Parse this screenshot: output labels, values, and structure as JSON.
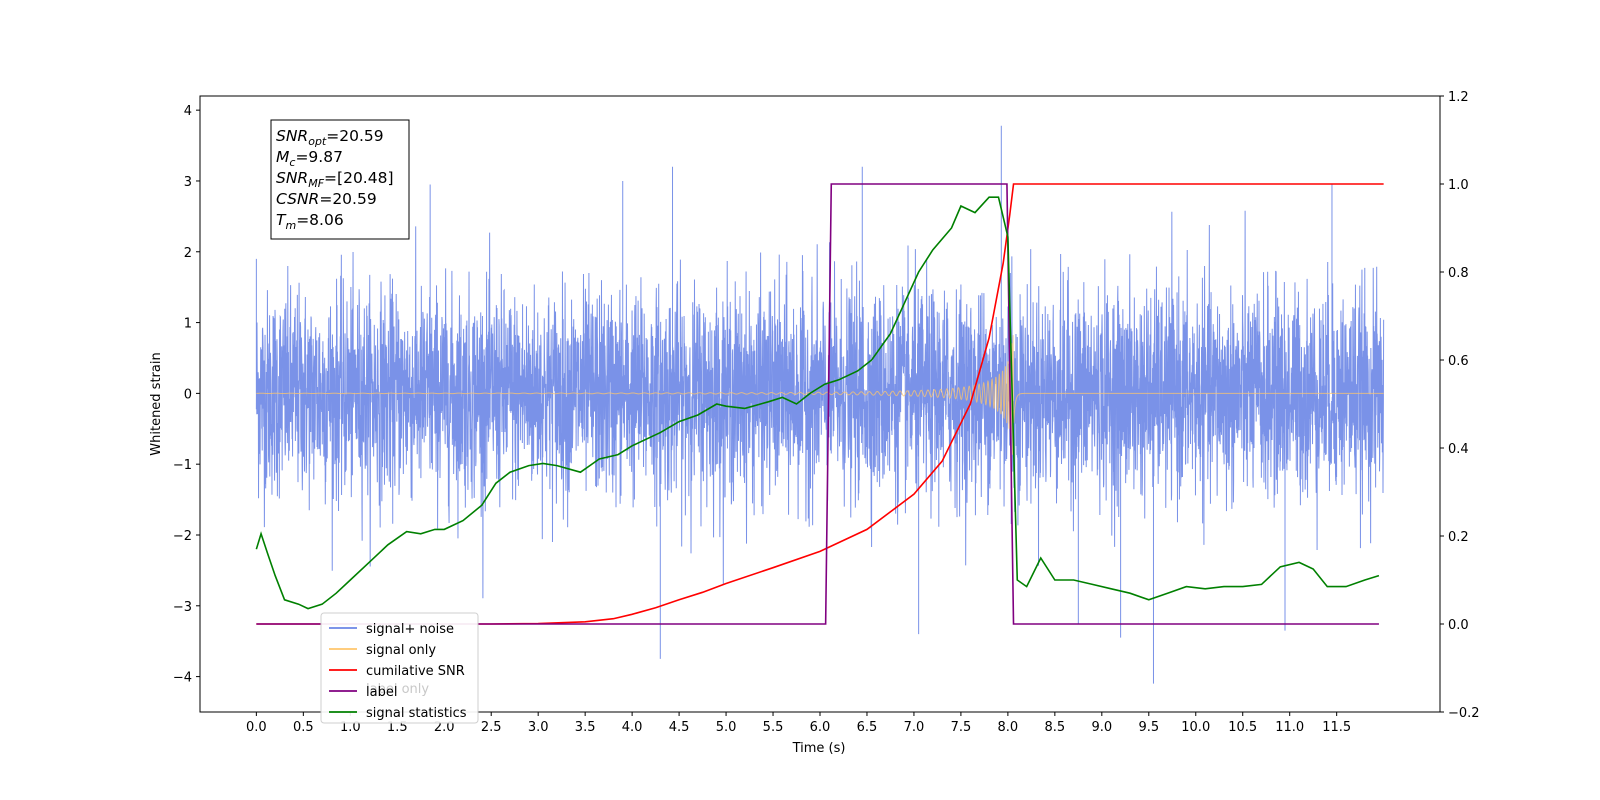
{
  "chart_data": {
    "type": "line",
    "xlabel": "Time (s)",
    "ylabel": "Whitened strain",
    "xlim": [
      -0.6,
      12.6
    ],
    "ylim": [
      -4.5,
      4.2
    ],
    "y2lim": [
      -0.2,
      1.2
    ],
    "x_ticks": [
      0.0,
      0.5,
      1.0,
      1.5,
      2.0,
      2.5,
      3.0,
      3.5,
      4.0,
      4.5,
      5.0,
      5.5,
      6.0,
      6.5,
      7.0,
      7.5,
      8.0,
      8.5,
      9.0,
      9.5,
      10.0,
      10.5,
      11.0,
      11.5
    ],
    "x_tick_labels": [
      "0.0",
      "0.5",
      "1.0",
      "1.5",
      "2.0",
      "2.5",
      "3.0",
      "3.5",
      "4.0",
      "4.5",
      "5.0",
      "5.5",
      "6.0",
      "6.5",
      "7.0",
      "7.5",
      "8.0",
      "8.5",
      "9.0",
      "9.5",
      "10.0",
      "10.5",
      "11.0",
      "11.5"
    ],
    "y_ticks": [
      -4,
      -3,
      -2,
      -1,
      0,
      1,
      2,
      3,
      4
    ],
    "y_tick_labels": [
      "−4",
      "−3",
      "−2",
      "−1",
      "0",
      "1",
      "2",
      "3",
      "4"
    ],
    "y2_ticks": [
      -0.2,
      0.0,
      0.2,
      0.4,
      0.6,
      0.8,
      1.0,
      1.2
    ],
    "y2_tick_labels": [
      "−0.2",
      "0.0",
      "0.2",
      "0.4",
      "0.6",
      "0.8",
      "1.0",
      "1.2"
    ],
    "grid": false,
    "legend_position": "lower-left",
    "legend": [
      {
        "label": "signal+ noise",
        "color": "#6b86e6"
      },
      {
        "label": "signal only",
        "color": "#ffc66b"
      },
      {
        "label": "cumilative SNR",
        "color": "#ff0000"
      },
      {
        "label": "label",
        "color": "#800080"
      },
      {
        "label": "signal statistics",
        "color": "#008000"
      }
    ],
    "legend_hidden_text": "label only",
    "annotation": {
      "lines": [
        {
          "main": "SNR",
          "sub": "opt",
          "value": "=20.59"
        },
        {
          "main": "M",
          "sub": "c",
          "value": "=9.87"
        },
        {
          "main": "SNR",
          "sub": "MF",
          "value": "=[20.48]"
        },
        {
          "main": "CSNR",
          "sub": "",
          "value": "=20.59"
        },
        {
          "main": "T",
          "sub": "m",
          "value": "=8.06"
        }
      ]
    },
    "series": [
      {
        "name": "signal+ noise",
        "axis": "left",
        "color": "#6b86e6",
        "x_range": [
          0.0,
          12.0
        ],
        "envelope_typical": 1.8,
        "spikes": [
          [
            0.0,
            1.9
          ],
          [
            4.3,
            -3.75
          ],
          [
            4.43,
            3.2
          ],
          [
            6.45,
            3.2
          ],
          [
            7.05,
            -3.4
          ],
          [
            7.93,
            3.78
          ],
          [
            8.75,
            -3.25
          ],
          [
            9.2,
            -3.45
          ],
          [
            9.55,
            -4.1
          ],
          [
            10.95,
            -3.35
          ],
          [
            11.45,
            2.95
          ],
          [
            1.85,
            2.95
          ],
          [
            3.9,
            3.0
          ]
        ]
      },
      {
        "name": "signal only",
        "axis": "left",
        "color": "#ffc66b",
        "type": "chirp",
        "t_merger": 8.06,
        "peak_amplitude": 1.6
      },
      {
        "name": "cumilative SNR",
        "axis": "right",
        "color": "#ff0000",
        "x": [
          0.0,
          2.5,
          3.0,
          3.5,
          3.8,
          4.0,
          4.25,
          4.5,
          4.75,
          5.0,
          5.5,
          6.0,
          6.5,
          7.0,
          7.3,
          7.6,
          7.8,
          7.95,
          8.02,
          8.06,
          12.0
        ],
        "y": [
          0.0,
          0.0,
          0.001,
          0.005,
          0.012,
          0.022,
          0.037,
          0.055,
          0.072,
          0.092,
          0.128,
          0.165,
          0.215,
          0.295,
          0.37,
          0.5,
          0.65,
          0.82,
          0.93,
          1.0,
          1.0
        ]
      },
      {
        "name": "label",
        "axis": "right",
        "color": "#800080",
        "x": [
          0.0,
          6.06,
          6.12,
          7.99,
          8.06,
          11.95
        ],
        "y": [
          0.0,
          0.0,
          1.0,
          1.0,
          0.0,
          0.0
        ]
      },
      {
        "name": "signal statistics",
        "axis": "right",
        "color": "#008000",
        "x": [
          0.0,
          0.05,
          0.12,
          0.2,
          0.3,
          0.45,
          0.55,
          0.7,
          0.85,
          1.0,
          1.2,
          1.4,
          1.6,
          1.75,
          1.9,
          2.0,
          2.2,
          2.4,
          2.55,
          2.7,
          2.9,
          3.05,
          3.2,
          3.45,
          3.55,
          3.65,
          3.85,
          4.0,
          4.15,
          4.3,
          4.5,
          4.7,
          4.9,
          5.0,
          5.2,
          5.45,
          5.6,
          5.75,
          5.9,
          6.05,
          6.2,
          6.4,
          6.55,
          6.75,
          6.9,
          7.05,
          7.2,
          7.4,
          7.5,
          7.65,
          7.8,
          7.9,
          8.0,
          8.1,
          8.2,
          8.35,
          8.5,
          8.7,
          8.9,
          9.1,
          9.3,
          9.5,
          9.7,
          9.9,
          10.1,
          10.3,
          10.5,
          10.7,
          10.9,
          11.1,
          11.25,
          11.4,
          11.6,
          11.8,
          11.95
        ],
        "y": [
          0.17,
          0.205,
          0.16,
          0.11,
          0.055,
          0.045,
          0.035,
          0.045,
          0.07,
          0.1,
          0.14,
          0.18,
          0.21,
          0.205,
          0.215,
          0.215,
          0.235,
          0.27,
          0.32,
          0.345,
          0.36,
          0.365,
          0.36,
          0.345,
          0.36,
          0.375,
          0.385,
          0.405,
          0.42,
          0.435,
          0.46,
          0.475,
          0.5,
          0.495,
          0.49,
          0.505,
          0.515,
          0.5,
          0.525,
          0.545,
          0.555,
          0.575,
          0.6,
          0.66,
          0.73,
          0.8,
          0.85,
          0.9,
          0.95,
          0.935,
          0.97,
          0.97,
          0.88,
          0.1,
          0.085,
          0.15,
          0.1,
          0.1,
          0.09,
          0.08,
          0.07,
          0.055,
          0.07,
          0.085,
          0.08,
          0.085,
          0.085,
          0.09,
          0.13,
          0.14,
          0.125,
          0.085,
          0.085,
          0.1,
          0.11
        ]
      }
    ]
  }
}
